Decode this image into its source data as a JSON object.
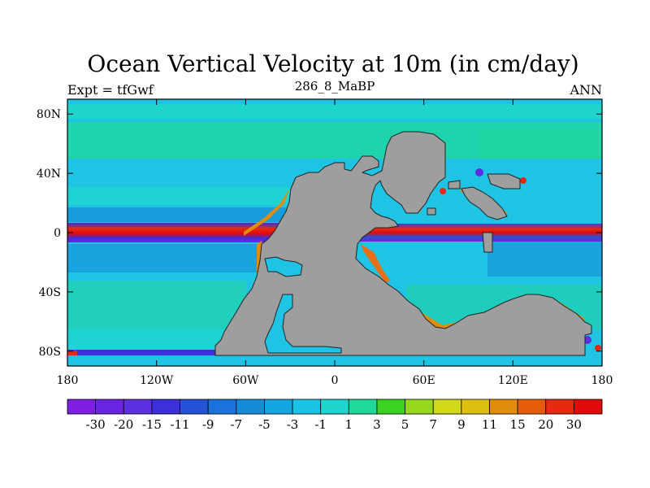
{
  "chart_data": {
    "type": "heatmap",
    "title": "Ocean Vertical Velocity at 10m (in cm/day)",
    "left_label": "Expt = tfGwf",
    "center_label": "286_8_MaBP",
    "right_label": "ANN",
    "x_ticks": [
      "180",
      "120W",
      "60W",
      "0",
      "60E",
      "120E",
      "180"
    ],
    "x_tick_values": [
      -180,
      -120,
      -60,
      0,
      60,
      120,
      180
    ],
    "y_ticks": [
      "80N",
      "40N",
      "0",
      "40S",
      "80S"
    ],
    "y_tick_values": [
      80,
      40,
      0,
      -40,
      -80
    ],
    "xlim": [
      -180,
      180
    ],
    "ylim": [
      -90,
      90
    ],
    "colorbar": {
      "labels": [
        "-30",
        "-20",
        "-15",
        "-11",
        "-9",
        "-7",
        "-5",
        "-3",
        "-1",
        "1",
        "3",
        "5",
        "7",
        "9",
        "11",
        "15",
        "20",
        "30"
      ],
      "colors": [
        "#7d1ee0",
        "#6a23e0",
        "#5a30df",
        "#3c2fdc",
        "#2453d6",
        "#1a73dd",
        "#148bd9",
        "#13a5e0",
        "#18c3e6",
        "#1fd6cf",
        "#20d89a",
        "#3ad321",
        "#97d81e",
        "#d0d918",
        "#dcbf10",
        "#e08c0c",
        "#e75c0b",
        "#e62a12",
        "#e00a0a"
      ]
    },
    "land_color": "#9e9e9e",
    "ocean_background_color": "#1fc3e4"
  }
}
